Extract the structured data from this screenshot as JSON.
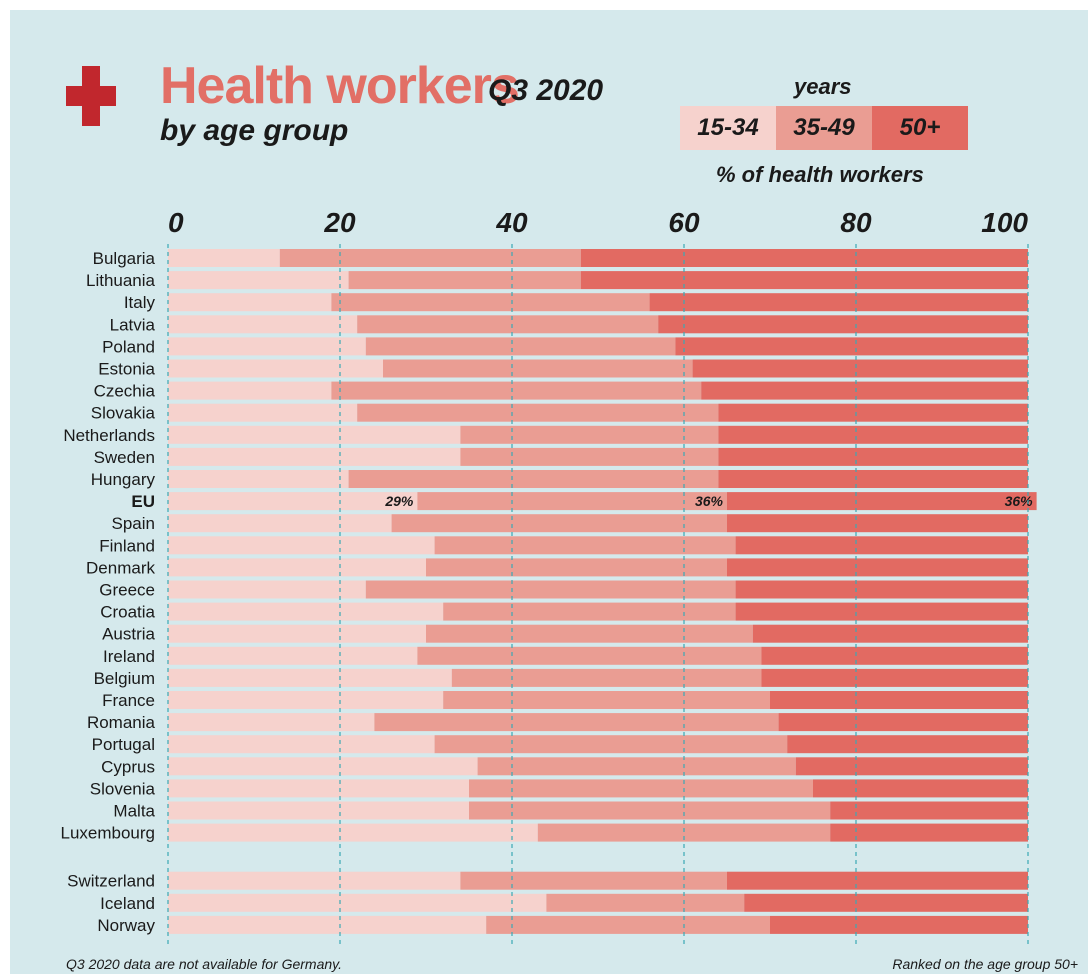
{
  "header": {
    "title": "Health workers",
    "period": "Q3 2020",
    "subtitle": "by age group"
  },
  "legend": {
    "title": "years",
    "unit_label": "% of health workers",
    "items": [
      {
        "label": "15-34",
        "color": "#f6d2cd"
      },
      {
        "label": "35-49",
        "color": "#ea9d93"
      },
      {
        "label": "50+",
        "color": "#e26a62"
      }
    ]
  },
  "footnotes": {
    "left": "Q3 2020 data are not available for Germany.",
    "right": "Ranked on the age group 50+"
  },
  "icons": {
    "cross": "red-cross-icon",
    "cross_color": "#c1272d"
  },
  "chart_data": {
    "type": "bar",
    "orientation": "horizontal",
    "stacked": true,
    "xlim": [
      0,
      100
    ],
    "xticks": [
      "0",
      "20",
      "40",
      "60",
      "80",
      "100"
    ],
    "grid": "vertical dashed",
    "categories": [
      "Bulgaria",
      "Lithuania",
      "Italy",
      "Latvia",
      "Poland",
      "Estonia",
      "Czechia",
      "Slovakia",
      "Netherlands",
      "Sweden",
      "Hungary",
      "EU",
      "Spain",
      "Finland",
      "Denmark",
      "Greece",
      "Croatia",
      "Austria",
      "Ireland",
      "Belgium",
      "France",
      "Romania",
      "Portugal",
      "Cyprus",
      "Slovenia",
      "Malta",
      "Luxembourg",
      "Switzerland",
      "Iceland",
      "Norway"
    ],
    "group_break_before": "Switzerland",
    "highlight": "EU",
    "series": [
      {
        "name": "15-34",
        "color": "#f6d2cd",
        "values": [
          13,
          21,
          19,
          22,
          23,
          25,
          19,
          22,
          34,
          34,
          21,
          29,
          26,
          31,
          30,
          23,
          32,
          30,
          29,
          33,
          32,
          24,
          31,
          36,
          35,
          35,
          43,
          34,
          44,
          37
        ]
      },
      {
        "name": "35-49",
        "color": "#ea9d93",
        "values": [
          35,
          27,
          37,
          35,
          36,
          36,
          43,
          42,
          30,
          30,
          43,
          36,
          39,
          35,
          35,
          43,
          34,
          38,
          40,
          36,
          38,
          47,
          41,
          37,
          40,
          42,
          34,
          31,
          23,
          33
        ]
      },
      {
        "name": "50+",
        "color": "#e26a62",
        "values": [
          52,
          52,
          44,
          43,
          41,
          39,
          38,
          36,
          36,
          36,
          36,
          36,
          35,
          34,
          35,
          34,
          34,
          32,
          31,
          31,
          30,
          29,
          28,
          27,
          25,
          23,
          23,
          35,
          33,
          30
        ]
      }
    ],
    "data_labels": {
      "EU": [
        "29%",
        "36%",
        "36%"
      ]
    }
  }
}
